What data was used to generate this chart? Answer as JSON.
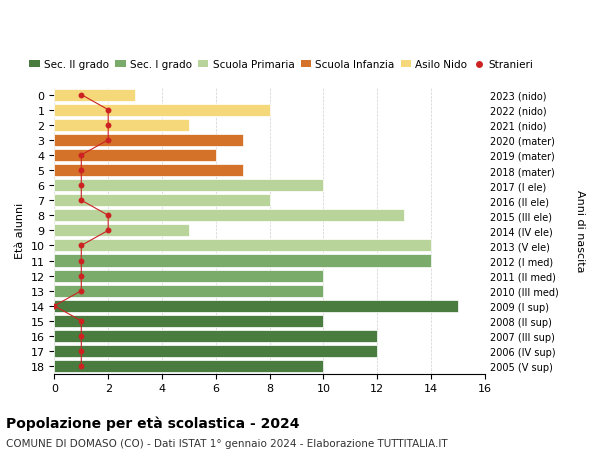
{
  "ages": [
    18,
    17,
    16,
    15,
    14,
    13,
    12,
    11,
    10,
    9,
    8,
    7,
    6,
    5,
    4,
    3,
    2,
    1,
    0
  ],
  "years": [
    "2005 (V sup)",
    "2006 (IV sup)",
    "2007 (III sup)",
    "2008 (II sup)",
    "2009 (I sup)",
    "2010 (III med)",
    "2011 (II med)",
    "2012 (I med)",
    "2013 (V ele)",
    "2014 (IV ele)",
    "2015 (III ele)",
    "2016 (II ele)",
    "2017 (I ele)",
    "2018 (mater)",
    "2019 (mater)",
    "2020 (mater)",
    "2021 (nido)",
    "2022 (nido)",
    "2023 (nido)"
  ],
  "bar_values": [
    10,
    12,
    12,
    10,
    15,
    10,
    10,
    14,
    14,
    5,
    13,
    8,
    10,
    7,
    6,
    7,
    5,
    8,
    3
  ],
  "bar_colors": [
    "#4a7c3f",
    "#4a7c3f",
    "#4a7c3f",
    "#4a7c3f",
    "#4a7c3f",
    "#7aab6a",
    "#7aab6a",
    "#7aab6a",
    "#b8d49a",
    "#b8d49a",
    "#b8d49a",
    "#b8d49a",
    "#b8d49a",
    "#d4722a",
    "#d4722a",
    "#d4722a",
    "#f5d87a",
    "#f5d87a",
    "#f5d87a"
  ],
  "stranieri_x": [
    1,
    1,
    1,
    1,
    0,
    1,
    1,
    1,
    1,
    2,
    2,
    1,
    1,
    1,
    1,
    2,
    2,
    2,
    1
  ],
  "title": "Popolazione per età scolastica - 2024",
  "subtitle": "COMUNE DI DOMASO (CO) - Dati ISTAT 1° gennaio 2024 - Elaborazione TUTTITALIA.IT",
  "ylabel_left": "Età alunni",
  "ylabel_right": "Anni di nascita",
  "xlim": [
    0,
    16
  ],
  "xticks": [
    0,
    2,
    4,
    6,
    8,
    10,
    12,
    14,
    16
  ],
  "legend_labels": [
    "Sec. II grado",
    "Sec. I grado",
    "Scuola Primaria",
    "Scuola Infanzia",
    "Asilo Nido",
    "Stranieri"
  ],
  "legend_colors": [
    "#4a7c3f",
    "#7aab6a",
    "#b8d49a",
    "#d4722a",
    "#f5d87a",
    "#cc2222"
  ],
  "bg_color": "#ffffff",
  "grid_color": "#d0d0d0"
}
